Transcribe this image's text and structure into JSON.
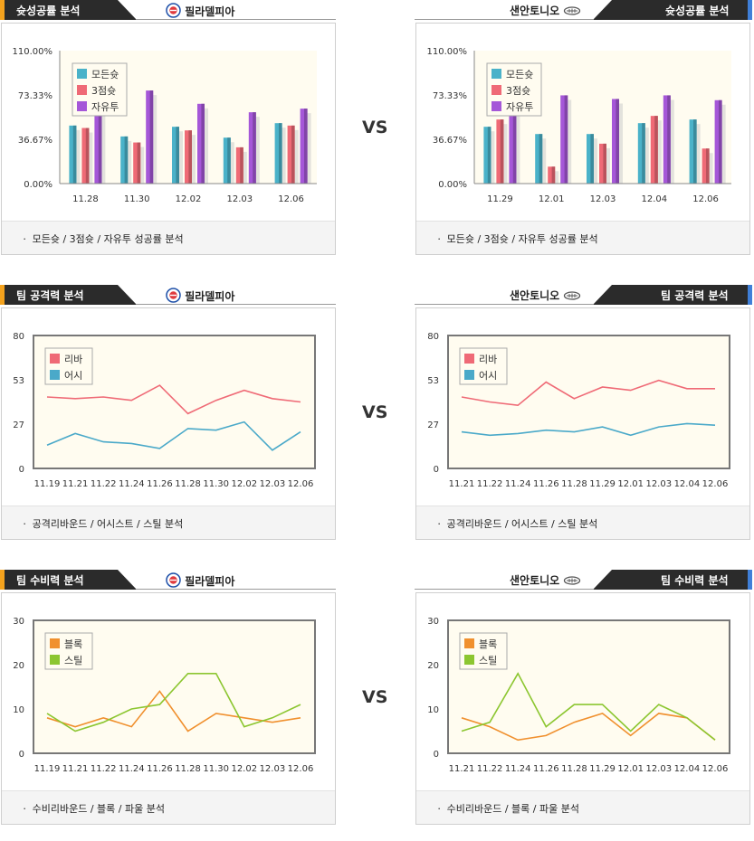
{
  "vs_label": "VS",
  "sections": [
    {
      "title": "슛성공률 분석",
      "footer": "ㆍ 모든슛 / 3점슛 / 자유투 성공률 분석",
      "left": {
        "team": "필라델피아",
        "chart_data": {
          "type": "bar",
          "categories": [
            "11.28",
            "11.30",
            "12.02",
            "12.03",
            "12.06"
          ],
          "series": [
            {
              "name": "모든슛",
              "values": [
                48,
                39,
                47,
                38,
                50
              ],
              "color": "#4ab2c9"
            },
            {
              "name": "3점슛",
              "values": [
                46,
                34,
                44,
                30,
                48
              ],
              "color": "#ef6a76"
            },
            {
              "name": "자유투",
              "values": [
                75,
                77,
                66,
                59,
                62
              ],
              "color": "#a557d8"
            }
          ],
          "yticks": [
            "110.00%",
            "73.33%",
            "36.67%",
            "0.00%"
          ],
          "ylim": [
            0,
            110
          ]
        }
      },
      "right": {
        "team": "샌안토니오",
        "chart_data": {
          "type": "bar",
          "categories": [
            "11.29",
            "12.01",
            "12.03",
            "12.04",
            "12.06"
          ],
          "series": [
            {
              "name": "모든슛",
              "values": [
                47,
                41,
                41,
                50,
                53
              ],
              "color": "#4ab2c9"
            },
            {
              "name": "3점슛",
              "values": [
                53,
                14,
                33,
                56,
                29
              ],
              "color": "#ef6a76"
            },
            {
              "name": "자유투",
              "values": [
                62,
                73,
                70,
                73,
                69
              ],
              "color": "#a557d8"
            }
          ],
          "yticks": [
            "110.00%",
            "73.33%",
            "36.67%",
            "0.00%"
          ],
          "ylim": [
            0,
            110
          ]
        }
      }
    },
    {
      "title": "팀 공격력 분석",
      "footer": "ㆍ 공격리바운드 / 어시스트 / 스틸 분석",
      "left": {
        "team": "필라델피아",
        "chart_data": {
          "type": "line",
          "categories": [
            "11.19",
            "11.21",
            "11.22",
            "11.24",
            "11.26",
            "11.28",
            "11.30",
            "12.02",
            "12.03",
            "12.06"
          ],
          "series": [
            {
              "name": "리바",
              "values": [
                43,
                42,
                43,
                41,
                50,
                33,
                41,
                47,
                42,
                40
              ],
              "color": "#ef6a76"
            },
            {
              "name": "어시",
              "values": [
                14,
                21,
                16,
                15,
                12,
                24,
                23,
                28,
                11,
                22
              ],
              "color": "#4aa9c9"
            }
          ],
          "yticks": [
            "80",
            "53",
            "27",
            "0"
          ],
          "ylim": [
            0,
            80
          ]
        }
      },
      "right": {
        "team": "샌안토니오",
        "chart_data": {
          "type": "line",
          "categories": [
            "11.21",
            "11.22",
            "11.24",
            "11.26",
            "11.28",
            "11.29",
            "12.01",
            "12.03",
            "12.04",
            "12.06"
          ],
          "series": [
            {
              "name": "리바",
              "values": [
                43,
                40,
                38,
                52,
                42,
                49,
                47,
                53,
                48,
                48
              ],
              "color": "#ef6a76"
            },
            {
              "name": "어시",
              "values": [
                22,
                20,
                21,
                23,
                22,
                25,
                20,
                25,
                27,
                26
              ],
              "color": "#4aa9c9"
            }
          ],
          "yticks": [
            "80",
            "53",
            "27",
            "0"
          ],
          "ylim": [
            0,
            80
          ]
        }
      }
    },
    {
      "title": "팀 수비력 분석",
      "footer": "ㆍ 수비리바운드 / 블록 / 파울 분석",
      "left": {
        "team": "필라델피아",
        "chart_data": {
          "type": "line",
          "categories": [
            "11.19",
            "11.21",
            "11.22",
            "11.24",
            "11.26",
            "11.28",
            "11.30",
            "12.02",
            "12.03",
            "12.06"
          ],
          "series": [
            {
              "name": "블록",
              "values": [
                8,
                6,
                8,
                6,
                14,
                5,
                9,
                8,
                7,
                8
              ],
              "color": "#f0902e"
            },
            {
              "name": "스틸",
              "values": [
                9,
                5,
                7,
                10,
                11,
                18,
                18,
                6,
                8,
                11
              ],
              "color": "#8cc630"
            }
          ],
          "yticks": [
            "30",
            "20",
            "10",
            "0"
          ],
          "ylim": [
            0,
            30
          ]
        }
      },
      "right": {
        "team": "샌안토니오",
        "chart_data": {
          "type": "line",
          "categories": [
            "11.21",
            "11.22",
            "11.24",
            "11.26",
            "11.28",
            "11.29",
            "12.01",
            "12.03",
            "12.04",
            "12.06"
          ],
          "series": [
            {
              "name": "블록",
              "values": [
                8,
                6,
                3,
                4,
                7,
                9,
                4,
                9,
                8,
                3
              ],
              "color": "#f0902e"
            },
            {
              "name": "스틸",
              "values": [
                5,
                7,
                18,
                6,
                11,
                11,
                5,
                11,
                8,
                3
              ],
              "color": "#8cc630"
            }
          ],
          "yticks": [
            "30",
            "20",
            "10",
            "0"
          ],
          "ylim": [
            0,
            30
          ]
        }
      }
    }
  ]
}
